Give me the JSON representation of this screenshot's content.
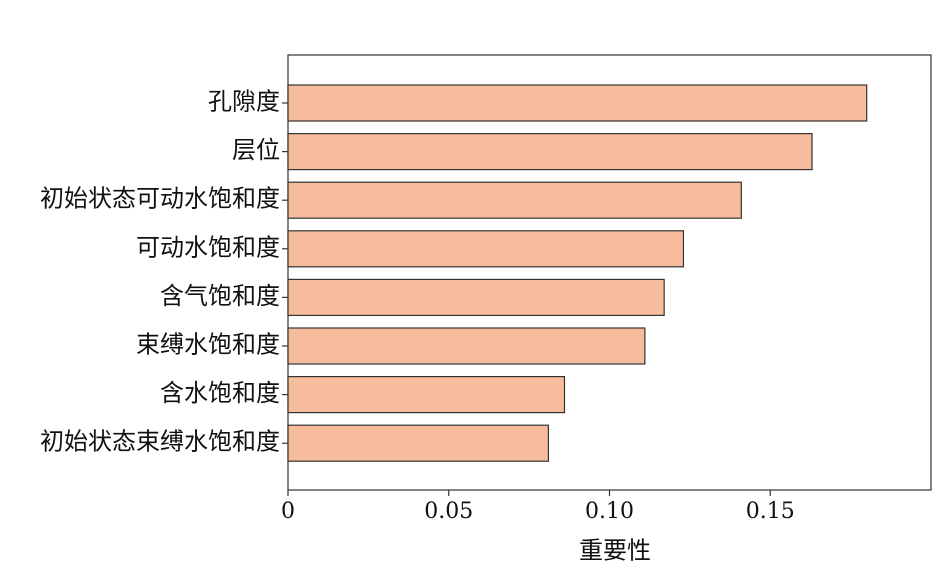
{
  "chart_data": {
    "type": "bar",
    "orientation": "horizontal",
    "x_label": "重要性",
    "categories": [
      "孔隙度",
      "层位",
      "初始状态可动水饱和度",
      "可动水饱和度",
      "含气饱和度",
      "束缚水饱和度",
      "含水饱和度",
      "初始状态束缚水饱和度"
    ],
    "values": [
      0.18,
      0.163,
      0.141,
      0.123,
      0.117,
      0.111,
      0.086,
      0.081
    ],
    "color": "#f7bc9c",
    "xlim": [
      0,
      0.2
    ],
    "xticks": [
      0,
      0.05,
      {
        "value": 0.1,
        "label": "0.10"
      },
      0.15
    ]
  }
}
